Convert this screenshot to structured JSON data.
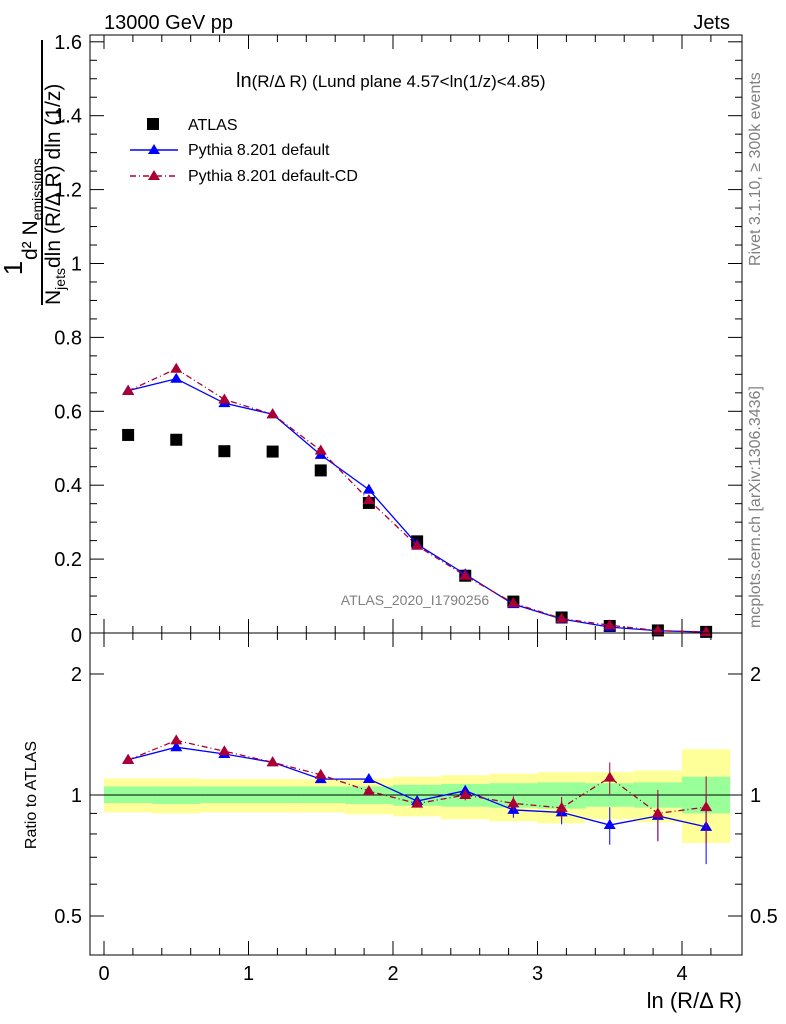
{
  "header": {
    "energy_label": "13000 GeV pp",
    "process_label": "Jets"
  },
  "side_text": {
    "rivet": "Rivet 3.1.10, ≥ 300k events",
    "mcplots": "mcplots.cern.ch [arXiv:1306.3436]"
  },
  "watermark": "ATLAS_2020_I1790256",
  "chart_data": [
    {
      "type": "scatter",
      "panel": "main",
      "title": "ln(R/Δ R) (Lund plane 4.57<ln(1/z)<4.85)",
      "ylabel": "1/N_jets d²N_emissions / dln(R/Δ R) dln(1/z)",
      "xlabel": "ln (R/Δ R)",
      "xlim": [
        -0.1,
        4.4
      ],
      "ylim": [
        0,
        1.62
      ],
      "yticks": [
        0.2,
        0.4,
        0.6,
        0.8,
        1,
        1.2,
        1.4,
        1.6
      ],
      "ytick_labels": [
        "0.2",
        "0.4",
        "0.6",
        "0.8",
        "1",
        "1.2",
        "1.4",
        "1.6"
      ],
      "x": [
        0.167,
        0.5,
        0.833,
        1.167,
        1.5,
        1.833,
        2.167,
        2.5,
        2.833,
        3.167,
        3.5,
        3.833,
        4.167
      ],
      "legend_position": "top-left",
      "series": [
        {
          "name": "ATLAS",
          "color": "#000000",
          "marker": "square",
          "values": [
            0.536,
            0.523,
            0.492,
            0.491,
            0.44,
            0.352,
            0.248,
            0.155,
            0.085,
            0.042,
            0.019,
            0.007,
            0.003
          ]
        },
        {
          "name": "Pythia 8.201 default",
          "color": "#0000ff",
          "marker": "triangle",
          "line": "solid",
          "values": [
            0.656,
            0.688,
            0.622,
            0.592,
            0.482,
            0.388,
            0.24,
            0.159,
            0.078,
            0.038,
            0.016,
            0.006,
            0.0025
          ]
        },
        {
          "name": "Pythia 8.201 default-CD",
          "color": "#aa0033",
          "marker": "triangle",
          "line": "dashdot",
          "values": [
            0.655,
            0.715,
            0.632,
            0.592,
            0.494,
            0.36,
            0.236,
            0.155,
            0.081,
            0.039,
            0.021,
            0.0063,
            0.0028
          ]
        }
      ]
    },
    {
      "type": "scatter",
      "panel": "ratio",
      "ylabel": "Ratio to ATLAS",
      "xlabel": "ln (R/Δ R)",
      "xlim": [
        -0.1,
        4.4
      ],
      "ylim": [
        0.4,
        2.3
      ],
      "yticks": [
        0.5,
        1,
        2
      ],
      "ytick_labels": [
        "0.5",
        "1",
        "2"
      ],
      "xticks": [
        0,
        1,
        2,
        3,
        4
      ],
      "xtick_labels": [
        "0",
        "1",
        "2",
        "3",
        "4"
      ],
      "x": [
        0.167,
        0.5,
        0.833,
        1.167,
        1.5,
        1.833,
        2.167,
        2.5,
        2.833,
        3.167,
        3.5,
        3.833,
        4.167
      ],
      "bin_edges": [
        0,
        0.333,
        0.667,
        1,
        1.333,
        1.667,
        2,
        2.333,
        2.667,
        3,
        3.333,
        3.667,
        4,
        4.333
      ],
      "band_inner": [
        [
          0.955,
          1.05
        ],
        [
          0.95,
          1.05
        ],
        [
          0.955,
          1.05
        ],
        [
          0.955,
          1.05
        ],
        [
          0.955,
          1.05
        ],
        [
          0.95,
          1.05
        ],
        [
          0.94,
          1.06
        ],
        [
          0.935,
          1.065
        ],
        [
          0.93,
          1.07
        ],
        [
          0.925,
          1.075
        ],
        [
          0.935,
          1.07
        ],
        [
          0.93,
          1.075
        ],
        [
          0.9,
          1.11
        ]
      ],
      "band_outer": [
        [
          0.905,
          1.1
        ],
        [
          0.9,
          1.1
        ],
        [
          0.905,
          1.095
        ],
        [
          0.905,
          1.095
        ],
        [
          0.905,
          1.095
        ],
        [
          0.895,
          1.1
        ],
        [
          0.885,
          1.11
        ],
        [
          0.87,
          1.12
        ],
        [
          0.86,
          1.13
        ],
        [
          0.85,
          1.14
        ],
        [
          0.87,
          1.14
        ],
        [
          0.855,
          1.15
        ],
        [
          0.76,
          1.3
        ]
      ],
      "series": [
        {
          "name": "Pythia 8.201 default",
          "color": "#0000ff",
          "values": [
            1.224,
            1.315,
            1.265,
            1.206,
            1.095,
            1.096,
            0.966,
            1.025,
            0.918,
            0.905,
            0.842,
            0.887,
            0.833
          ],
          "errors": [
            0.02,
            0.02,
            0.015,
            0.015,
            0.015,
            0.015,
            0.015,
            0.03,
            0.04,
            0.06,
            0.09,
            0.12,
            0.16
          ]
        },
        {
          "name": "Pythia 8.201 default-CD",
          "color": "#aa0033",
          "values": [
            1.222,
            1.367,
            1.285,
            1.206,
            1.123,
            1.023,
            0.952,
            1.0,
            0.953,
            0.929,
            1.105,
            0.9,
            0.933
          ],
          "errors": [
            0.02,
            0.02,
            0.015,
            0.015,
            0.015,
            0.015,
            0.015,
            0.03,
            0.04,
            0.06,
            0.1,
            0.13,
            0.18
          ]
        }
      ]
    }
  ]
}
